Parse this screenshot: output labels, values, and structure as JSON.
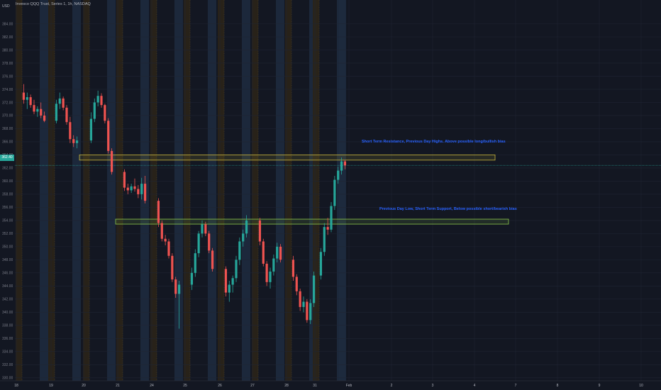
{
  "header": {
    "title": "Invesco QQQ Trust, Series 1, 1h, NASDAQ",
    "currency": "USD"
  },
  "last_price_label": "362.40",
  "annotations": [
    "Short Term Resistance, Previous Day Highs. Above possible long/bullish bias",
    "Previous Day Low, Short Term Support, Below possible short/bearish bias"
  ],
  "colors": {
    "background": "#131722",
    "bull": "#26a69a",
    "bear": "#ef5350",
    "session_premarket": "#1e2a3e",
    "session_afterhours": "#2b2418",
    "resistance_zone": "#c8b43c",
    "support_zone": "#8cc84a",
    "annotation_text": "#2962ff"
  },
  "chart_data": {
    "type": "candlestick",
    "title": "Invesco QQQ Trust, Series 1, 1h, NASDAQ",
    "ylabel": "USD",
    "ylim": [
      330,
      385
    ],
    "y_ticks": [
      384,
      382,
      380,
      378,
      376,
      374,
      372,
      370,
      368,
      366,
      364,
      362,
      360,
      358,
      356,
      354,
      352,
      350,
      348,
      346,
      344,
      342,
      340,
      338,
      336,
      334,
      332,
      330
    ],
    "x_ticks": [
      "18",
      "19",
      "20",
      "21",
      "24",
      "25",
      "26",
      "27",
      "28",
      "31",
      "Feb",
      "2",
      "3",
      "4",
      "7",
      "8",
      "9",
      "10"
    ],
    "session_days": [
      "18",
      "19",
      "20",
      "21",
      "24",
      "25",
      "26",
      "27",
      "28",
      "31"
    ],
    "zones": [
      {
        "name": "resistance",
        "top": 364.0,
        "bottom": 363.2,
        "label": "Short Term Resistance, Previous Day Highs. Above possible long/bullish bias"
      },
      {
        "name": "support",
        "top": 354.2,
        "bottom": 353.5,
        "label": "Previous Day Low, Short Term Support, Below possible short/bearish bias"
      }
    ],
    "last_price": 362.4,
    "series": [
      {
        "day": "18",
        "ohlc": [
          [
            373.5,
            374.8,
            371.8,
            372.4
          ],
          [
            372.4,
            373.5,
            371.0,
            372.8
          ],
          [
            372.8,
            373.2,
            371.2,
            371.6
          ],
          [
            371.6,
            372.4,
            370.2,
            370.6
          ],
          [
            370.6,
            371.4,
            369.8,
            371.0
          ],
          [
            371.0,
            372.0,
            369.6,
            370.0
          ],
          [
            370.0,
            370.6,
            369.0,
            369.2
          ]
        ]
      },
      {
        "day": "19",
        "ohlc": [
          [
            369.2,
            372.4,
            368.8,
            371.8
          ],
          [
            371.8,
            373.5,
            371.0,
            372.6
          ],
          [
            372.6,
            372.9,
            370.8,
            371.2
          ],
          [
            371.2,
            371.6,
            368.6,
            369.0
          ],
          [
            369.0,
            369.8,
            365.8,
            366.4
          ],
          [
            366.4,
            367.0,
            365.2,
            365.8
          ],
          [
            365.8,
            366.8,
            365.0,
            366.2
          ]
        ]
      },
      {
        "day": "20",
        "ohlc": [
          [
            366.2,
            370.5,
            365.8,
            369.5
          ],
          [
            369.5,
            372.6,
            369.0,
            372.0
          ],
          [
            372.0,
            373.8,
            371.4,
            373.0
          ],
          [
            373.0,
            373.4,
            371.2,
            371.6
          ],
          [
            371.6,
            371.8,
            368.8,
            369.2
          ],
          [
            369.2,
            369.6,
            364.2,
            364.6
          ],
          [
            364.6,
            365.0,
            361.0,
            361.4
          ]
        ]
      },
      {
        "day": "21",
        "ohlc": [
          [
            361.4,
            361.8,
            358.5,
            359.0
          ],
          [
            359.0,
            359.6,
            358.0,
            358.6
          ],
          [
            358.6,
            359.6,
            358.2,
            359.2
          ],
          [
            359.2,
            360.4,
            358.4,
            358.8
          ],
          [
            358.8,
            359.4,
            357.4,
            358.0
          ],
          [
            358.0,
            360.5,
            357.2,
            359.6
          ],
          [
            359.6,
            360.8,
            356.6,
            357.0
          ]
        ]
      },
      {
        "day": "24",
        "ohlc": [
          [
            357.0,
            357.4,
            353.0,
            353.6
          ],
          [
            353.6,
            354.0,
            350.8,
            351.2
          ],
          [
            351.2,
            351.8,
            350.2,
            350.8
          ],
          [
            350.8,
            351.2,
            348.2,
            348.6
          ],
          [
            348.6,
            349.0,
            344.6,
            345.0
          ],
          [
            345.0,
            345.4,
            342.2,
            342.8
          ],
          [
            342.8,
            344.8,
            337.5,
            344.2
          ]
        ]
      },
      {
        "day": "25",
        "ohlc": [
          [
            344.2,
            346.8,
            343.4,
            346.0
          ],
          [
            346.0,
            349.6,
            345.4,
            349.0
          ],
          [
            349.0,
            352.4,
            348.4,
            352.0
          ],
          [
            352.0,
            354.0,
            351.4,
            353.4
          ],
          [
            353.4,
            353.8,
            351.6,
            352.0
          ],
          [
            352.0,
            352.4,
            349.0,
            349.4
          ],
          [
            349.4,
            349.8,
            346.2,
            346.6
          ]
        ]
      },
      {
        "day": "26",
        "ohlc": [
          [
            346.6,
            347.0,
            342.4,
            343.0
          ],
          [
            343.0,
            344.8,
            341.6,
            344.2
          ],
          [
            344.2,
            345.6,
            343.0,
            345.2
          ],
          [
            345.2,
            348.6,
            344.6,
            348.0
          ],
          [
            348.0,
            351.4,
            347.2,
            350.8
          ],
          [
            350.8,
            352.6,
            350.0,
            352.0
          ],
          [
            352.0,
            354.8,
            351.4,
            354.0
          ]
        ]
      },
      {
        "day": "27",
        "ohlc": [
          [
            354.0,
            354.4,
            350.2,
            350.8
          ],
          [
            350.8,
            351.2,
            347.0,
            347.4
          ],
          [
            347.4,
            347.8,
            344.0,
            344.6
          ],
          [
            344.6,
            346.8,
            343.6,
            346.2
          ],
          [
            346.2,
            348.8,
            345.6,
            348.2
          ],
          [
            348.2,
            350.6,
            347.6,
            350.0
          ],
          [
            350.0,
            350.4,
            347.6,
            348.0
          ]
        ]
      },
      {
        "day": "28",
        "ohlc": [
          [
            348.0,
            348.6,
            344.8,
            345.4
          ],
          [
            345.4,
            345.8,
            342.6,
            343.2
          ],
          [
            343.2,
            343.6,
            340.2,
            340.8
          ],
          [
            340.8,
            342.4,
            340.0,
            341.6
          ],
          [
            341.6,
            342.0,
            338.4,
            338.8
          ],
          [
            338.8,
            342.0,
            338.2,
            341.4
          ],
          [
            341.4,
            346.2,
            340.8,
            345.6
          ]
        ]
      },
      {
        "day": "31",
        "ohlc": [
          [
            345.6,
            349.8,
            345.0,
            349.2
          ],
          [
            349.2,
            353.6,
            348.6,
            353.0
          ],
          [
            353.0,
            354.4,
            351.8,
            352.6
          ],
          [
            352.6,
            356.8,
            352.2,
            356.2
          ],
          [
            356.2,
            360.8,
            355.6,
            360.2
          ],
          [
            360.2,
            362.2,
            359.6,
            361.6
          ],
          [
            361.6,
            363.6,
            361.0,
            363.0
          ],
          [
            363.0,
            363.2,
            361.8,
            362.4
          ]
        ]
      }
    ]
  }
}
